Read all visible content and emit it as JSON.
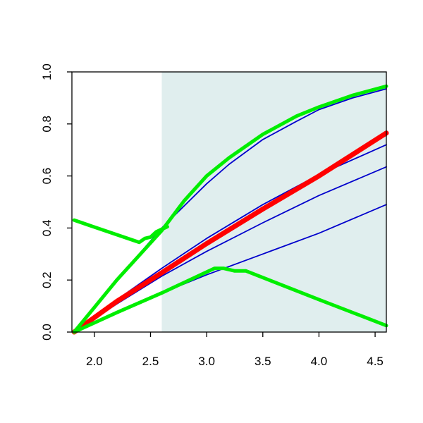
{
  "chart_data": {
    "type": "line",
    "title": "",
    "xlabel": "",
    "ylabel": "",
    "xlim": [
      1.8,
      4.6
    ],
    "ylim": [
      0.0,
      1.0
    ],
    "x_ticks": [
      2.0,
      2.5,
      3.0,
      3.5,
      4.0,
      4.5
    ],
    "x_tick_labels": [
      "2.0",
      "2.5",
      "3.0",
      "3.5",
      "4.0",
      "4.5"
    ],
    "y_ticks": [
      0.0,
      0.2,
      0.4,
      0.6,
      0.8,
      1.0
    ],
    "y_tick_labels": [
      "0.0",
      "0.2",
      "0.4",
      "0.6",
      "0.8",
      "1.0"
    ],
    "grid": false,
    "legend": "none",
    "shaded_region": {
      "x_from": 2.6,
      "x_to": 4.6,
      "color": "#e0eeee"
    },
    "series": [
      {
        "color": "#0000cc",
        "width": 1.8,
        "x": [
          1.82,
          2.2,
          2.6,
          3.0,
          3.5,
          4.0,
          4.6
        ],
        "y": [
          0.0,
          0.124,
          0.245,
          0.36,
          0.49,
          0.605,
          0.72
        ]
      },
      {
        "color": "#0000cc",
        "width": 1.8,
        "x": [
          1.82,
          2.2,
          2.6,
          3.0,
          3.5,
          4.0,
          4.6
        ],
        "y": [
          0.0,
          0.108,
          0.215,
          0.31,
          0.42,
          0.525,
          0.635
        ]
      },
      {
        "color": "#0000cc",
        "width": 1.8,
        "x": [
          1.82,
          2.2,
          2.6,
          3.0,
          3.5,
          4.0,
          4.6
        ],
        "y": [
          0.0,
          0.078,
          0.15,
          0.22,
          0.3,
          0.38,
          0.49
        ]
      },
      {
        "color": "#0000cc",
        "width": 1.8,
        "x": [
          1.82,
          2.2,
          2.6,
          3.0,
          3.2,
          3.5,
          3.8,
          4.0,
          4.3,
          4.6
        ],
        "y": [
          0.0,
          0.2,
          0.4,
          0.57,
          0.645,
          0.74,
          0.81,
          0.855,
          0.9,
          0.935
        ]
      },
      {
        "color": "#ff0000",
        "width": 7,
        "x": [
          1.82,
          2.2,
          2.6,
          3.0,
          3.5,
          4.0,
          4.6
        ],
        "y": [
          0.0,
          0.118,
          0.228,
          0.34,
          0.473,
          0.6,
          0.765
        ]
      },
      {
        "color": "#00ee00",
        "width": 5,
        "x": [
          1.82,
          2.2,
          2.6,
          2.8,
          3.0,
          3.2,
          3.5,
          3.8,
          4.0,
          4.3,
          4.6
        ],
        "y": [
          0.0,
          0.2,
          0.39,
          0.505,
          0.6,
          0.67,
          0.76,
          0.83,
          0.865,
          0.91,
          0.945
        ]
      },
      {
        "color": "#00ee00",
        "width": 5,
        "x": [
          1.82,
          2.4,
          2.45,
          2.5,
          2.55,
          2.6,
          2.65
        ],
        "y": [
          0.43,
          0.345,
          0.36,
          0.365,
          0.385,
          0.395,
          0.405
        ]
      },
      {
        "color": "#00ee00",
        "width": 5,
        "x": [
          1.82,
          2.2,
          2.6,
          3.07,
          3.15,
          3.25,
          3.35,
          4.0,
          4.6
        ],
        "y": [
          0.0,
          0.075,
          0.15,
          0.245,
          0.245,
          0.235,
          0.235,
          0.125,
          0.025
        ]
      }
    ]
  }
}
